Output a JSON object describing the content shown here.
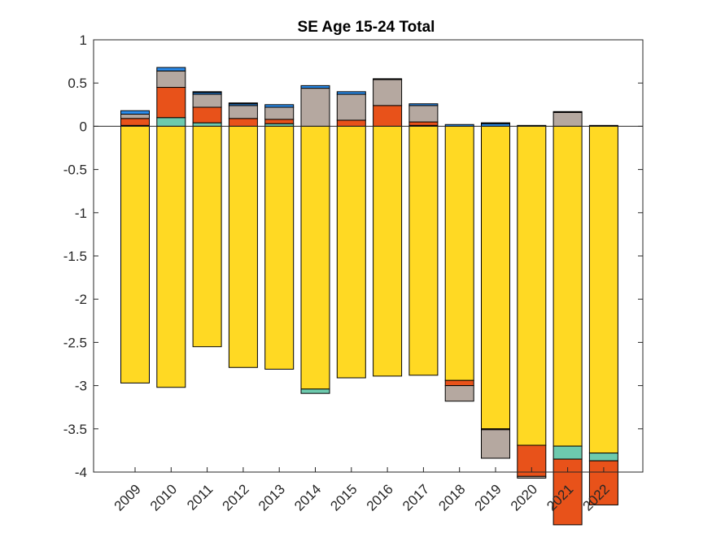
{
  "chart_data": {
    "type": "bar",
    "stacked": true,
    "title": "SE  Age 15-24  Total",
    "xlabel": "",
    "ylabel": "",
    "ylim": [
      -4,
      1
    ],
    "yticks": [
      1,
      0.5,
      0,
      -0.5,
      -1,
      -1.5,
      -2,
      -2.5,
      -3,
      -3.5,
      -4
    ],
    "ytick_labels": [
      "1",
      "0.5",
      "0",
      "-0.5",
      "-1",
      "-1.5",
      "-2",
      "-2.5",
      "-3",
      "-3.5",
      "-4"
    ],
    "categories": [
      "2009",
      "2010",
      "2011",
      "2012",
      "2013",
      "2014",
      "2015",
      "2016",
      "2017",
      "2018",
      "2019",
      "2020",
      "2021",
      "2022"
    ],
    "series": [
      {
        "name": "yellow",
        "color": "#FFD923",
        "values": [
          -2.97,
          -3.02,
          -2.55,
          -2.79,
          -2.81,
          -3.04,
          -2.91,
          -2.89,
          -2.88,
          -2.94,
          -3.5,
          -3.69,
          -3.7,
          -3.78
        ]
      },
      {
        "name": "teal",
        "color": "#6DCAAE",
        "values": [
          0.01,
          0.1,
          0.04,
          0.0,
          0.03,
          -0.05,
          0.0,
          0.0,
          0.01,
          0.0,
          0.0,
          0.01,
          -0.15,
          -0.09
        ]
      },
      {
        "name": "orange",
        "color": "#E8521A",
        "values": [
          0.08,
          0.35,
          0.18,
          0.09,
          0.05,
          0.0,
          0.07,
          0.24,
          0.04,
          -0.06,
          -0.01,
          -0.36,
          -0.76,
          -0.51
        ]
      },
      {
        "name": "gray",
        "color": "#B5A8A0",
        "values": [
          0.05,
          0.19,
          0.15,
          0.15,
          0.14,
          0.44,
          0.3,
          0.3,
          0.19,
          -0.18,
          -0.33,
          -0.02,
          0.16,
          0.0
        ]
      },
      {
        "name": "blue",
        "color": "#2B8CEB",
        "values": [
          0.04,
          0.04,
          0.02,
          0.02,
          0.03,
          0.03,
          0.03,
          0.0,
          0.02,
          0.02,
          0.03,
          0.0,
          0.0,
          0.0
        ]
      },
      {
        "name": "dark",
        "color": "#222222",
        "values": [
          0.0,
          0.0,
          0.01,
          0.01,
          0.0,
          0.0,
          0.0,
          0.01,
          0.0,
          0.0,
          0.01,
          0.0,
          0.01,
          0.01
        ]
      }
    ]
  }
}
